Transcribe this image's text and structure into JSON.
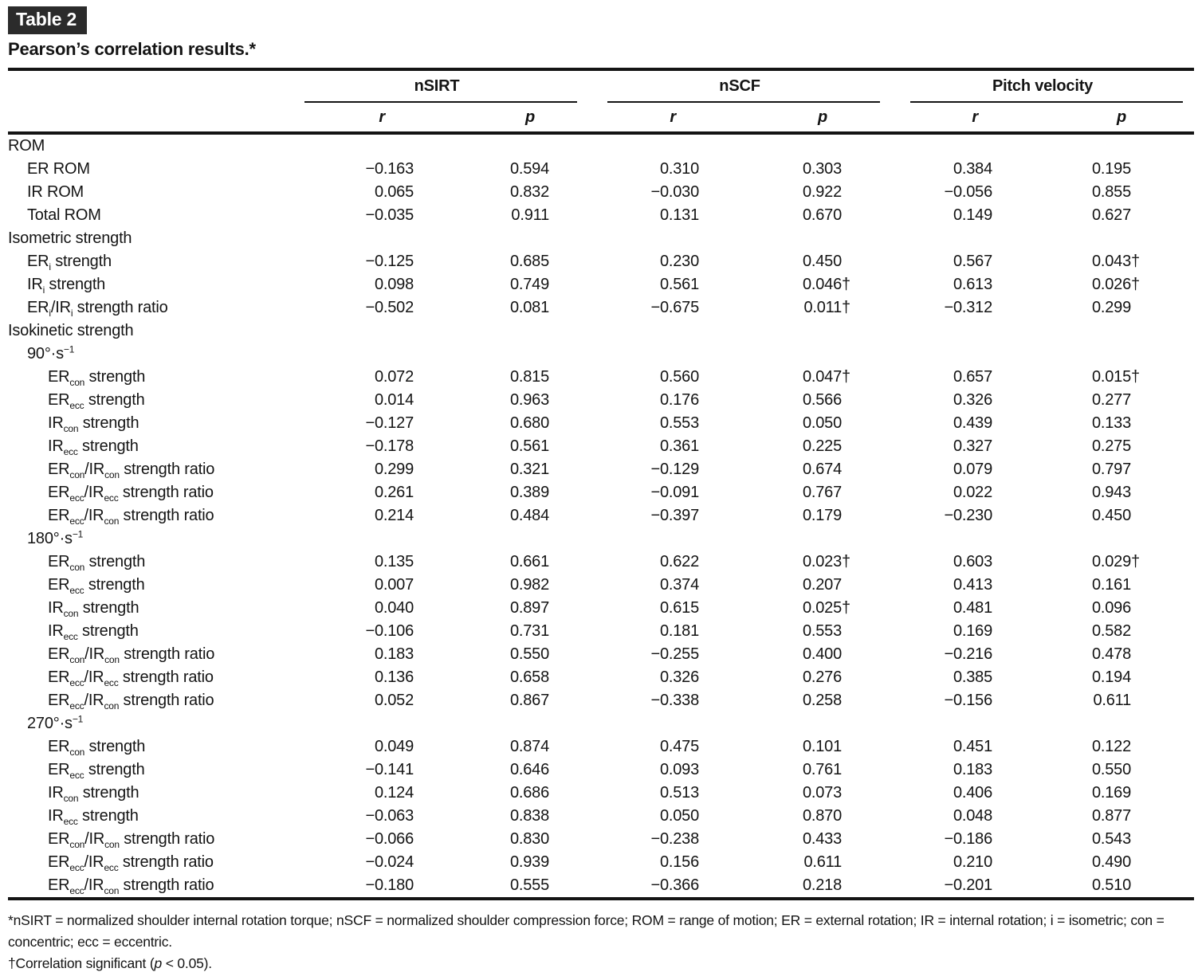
{
  "page": {
    "tag": "Table 2",
    "title": "Pearson’s correlation results.*"
  },
  "table": {
    "groups": [
      {
        "label": "nSIRT"
      },
      {
        "label": "nSCF"
      },
      {
        "label": "Pitch velocity"
      }
    ],
    "subheaders": [
      "r",
      "p",
      "r",
      "p",
      "r",
      "p"
    ],
    "rows": [
      {
        "label": "ROM",
        "indent": 0,
        "values": null
      },
      {
        "label": "ER ROM",
        "indent": 1,
        "values": [
          "−0.163",
          "0.594",
          "0.310",
          "0.303",
          "0.384",
          "0.195"
        ]
      },
      {
        "label": "IR ROM",
        "indent": 1,
        "values": [
          "0.065",
          "0.832",
          "−0.030",
          "0.922",
          "−0.056",
          "0.855"
        ]
      },
      {
        "label": "Total ROM",
        "indent": 1,
        "values": [
          "−0.035",
          "0.911",
          "0.131",
          "0.670",
          "0.149",
          "0.627"
        ]
      },
      {
        "label": "Isometric strength",
        "indent": 0,
        "values": null
      },
      {
        "label": "ER~i~ strength",
        "indent": 1,
        "values": [
          "−0.125",
          "0.685",
          "0.230",
          "0.450",
          "0.567",
          "0.043†"
        ]
      },
      {
        "label": "IR~i~ strength",
        "indent": 1,
        "values": [
          "0.098",
          "0.749",
          "0.561",
          "0.046†",
          "0.613",
          "0.026†"
        ]
      },
      {
        "label": "ER~i~/IR~i~ strength ratio",
        "indent": 1,
        "values": [
          "−0.502",
          "0.081",
          "−0.675",
          "0.011†",
          "−0.312",
          "0.299"
        ]
      },
      {
        "label": "Isokinetic strength",
        "indent": 0,
        "values": null
      },
      {
        "label": "90°·s^−1^",
        "indent": 1,
        "values": null
      },
      {
        "label": "ER~con~ strength",
        "indent": 2,
        "values": [
          "0.072",
          "0.815",
          "0.560",
          "0.047†",
          "0.657",
          "0.015†"
        ]
      },
      {
        "label": "ER~ecc~ strength",
        "indent": 2,
        "values": [
          "0.014",
          "0.963",
          "0.176",
          "0.566",
          "0.326",
          "0.277"
        ]
      },
      {
        "label": "IR~con~ strength",
        "indent": 2,
        "values": [
          "−0.127",
          "0.680",
          "0.553",
          "0.050",
          "0.439",
          "0.133"
        ]
      },
      {
        "label": "IR~ecc~ strength",
        "indent": 2,
        "values": [
          "−0.178",
          "0.561",
          "0.361",
          "0.225",
          "0.327",
          "0.275"
        ]
      },
      {
        "label": "ER~con~/IR~con~ strength ratio",
        "indent": 2,
        "values": [
          "0.299",
          "0.321",
          "−0.129",
          "0.674",
          "0.079",
          "0.797"
        ]
      },
      {
        "label": "ER~ecc~/IR~ecc~ strength ratio",
        "indent": 2,
        "values": [
          "0.261",
          "0.389",
          "−0.091",
          "0.767",
          "0.022",
          "0.943"
        ]
      },
      {
        "label": "ER~ecc~/IR~con~ strength ratio",
        "indent": 2,
        "values": [
          "0.214",
          "0.484",
          "−0.397",
          "0.179",
          "−0.230",
          "0.450"
        ]
      },
      {
        "label": "180°·s^−1^",
        "indent": 1,
        "values": null
      },
      {
        "label": "ER~con~ strength",
        "indent": 2,
        "values": [
          "0.135",
          "0.661",
          "0.622",
          "0.023†",
          "0.603",
          "0.029†"
        ]
      },
      {
        "label": "ER~ecc~ strength",
        "indent": 2,
        "values": [
          "0.007",
          "0.982",
          "0.374",
          "0.207",
          "0.413",
          "0.161"
        ]
      },
      {
        "label": "IR~con~ strength",
        "indent": 2,
        "values": [
          "0.040",
          "0.897",
          "0.615",
          "0.025†",
          "0.481",
          "0.096"
        ]
      },
      {
        "label": "IR~ecc~ strength",
        "indent": 2,
        "values": [
          "−0.106",
          "0.731",
          "0.181",
          "0.553",
          "0.169",
          "0.582"
        ]
      },
      {
        "label": "ER~con~/IR~con~ strength ratio",
        "indent": 2,
        "values": [
          "0.183",
          "0.550",
          "−0.255",
          "0.400",
          "−0.216",
          "0.478"
        ]
      },
      {
        "label": "ER~ecc~/IR~ecc~ strength ratio",
        "indent": 2,
        "values": [
          "0.136",
          "0.658",
          "0.326",
          "0.276",
          "0.385",
          "0.194"
        ]
      },
      {
        "label": "ER~ecc~/IR~con~ strength ratio",
        "indent": 2,
        "values": [
          "0.052",
          "0.867",
          "−0.338",
          "0.258",
          "−0.156",
          "0.611"
        ]
      },
      {
        "label": "270°·s^−1^",
        "indent": 1,
        "values": null
      },
      {
        "label": "ER~con~ strength",
        "indent": 2,
        "values": [
          "0.049",
          "0.874",
          "0.475",
          "0.101",
          "0.451",
          "0.122"
        ]
      },
      {
        "label": "ER~ecc~ strength",
        "indent": 2,
        "values": [
          "−0.141",
          "0.646",
          "0.093",
          "0.761",
          "0.183",
          "0.550"
        ]
      },
      {
        "label": "IR~con~ strength",
        "indent": 2,
        "values": [
          "0.124",
          "0.686",
          "0.513",
          "0.073",
          "0.406",
          "0.169"
        ]
      },
      {
        "label": "IR~ecc~ strength",
        "indent": 2,
        "values": [
          "−0.063",
          "0.838",
          "0.050",
          "0.870",
          "0.048",
          "0.877"
        ]
      },
      {
        "label": "ER~con~/IR~con~ strength ratio",
        "indent": 2,
        "values": [
          "−0.066",
          "0.830",
          "−0.238",
          "0.433",
          "−0.186",
          "0.543"
        ]
      },
      {
        "label": "ER~ecc~/IR~ecc~ strength ratio",
        "indent": 2,
        "values": [
          "−0.024",
          "0.939",
          "0.156",
          "0.611",
          "0.210",
          "0.490"
        ]
      },
      {
        "label": "ER~ecc~/IR~con~ strength ratio",
        "indent": 2,
        "values": [
          "−0.180",
          "0.555",
          "−0.366",
          "0.218",
          "−0.201",
          "0.510"
        ]
      }
    ]
  },
  "footnotes": {
    "line1a": "*nSIRT = normalized shoulder internal rotation torque; nSCF = normalized shoulder compression force; ROM = range of motion; ER = external rotation; IR = internal rotation; i = isometric; con =",
    "line1b": "concentric; ecc = eccentric.",
    "line2_pre": "†Correlation significant (",
    "line2_italic": "p",
    "line2_post": " < 0.05)."
  },
  "colors": {
    "text": "#141414",
    "tag_background": "#2b2b2b",
    "tag_text": "#ffffff",
    "rule": "#141414"
  }
}
